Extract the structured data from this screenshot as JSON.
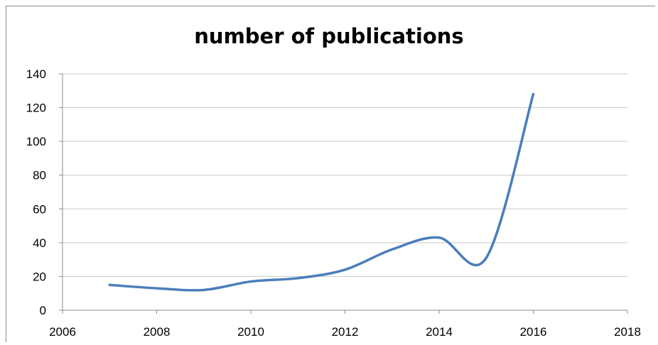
{
  "chart_data": {
    "type": "line",
    "title": "number of publications",
    "xlabel": "",
    "ylabel": "",
    "xlim": [
      2006,
      2018
    ],
    "ylim": [
      0,
      140
    ],
    "x_ticks": [
      2006,
      2008,
      2010,
      2012,
      2014,
      2016,
      2018
    ],
    "y_ticks": [
      0,
      20,
      40,
      60,
      80,
      100,
      120,
      140
    ],
    "grid": "horizontal",
    "legend": "none",
    "series": [
      {
        "color": "#4a7ebb",
        "x": [
          2007,
          2008,
          2009,
          2010,
          2011,
          2012,
          2013,
          2014,
          2015,
          2016
        ],
        "y": [
          15,
          13,
          12,
          17,
          19,
          24,
          36,
          43,
          31,
          128
        ]
      }
    ]
  }
}
